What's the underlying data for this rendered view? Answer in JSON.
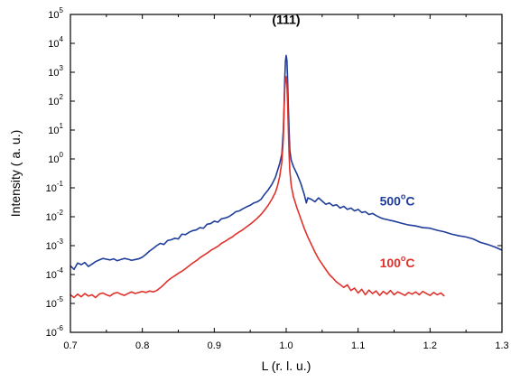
{
  "chart_data": {
    "type": "line",
    "xlabel": "L (r. l. u.)",
    "ylabel": "Intensity ( a. u.)",
    "xlim": [
      0.7,
      1.3
    ],
    "ylim": [
      1e-06,
      100000.0
    ],
    "yscale": "log",
    "grid": false,
    "x_ticks": [
      "0.7",
      "0.8",
      "0.9",
      "1.0",
      "1.1",
      "1.2",
      "1.3"
    ],
    "x_tick_values": [
      0.7,
      0.8,
      0.9,
      1.0,
      1.1,
      1.2,
      1.3
    ],
    "y_ticks": [
      {
        "base": "10",
        "exp": "-6",
        "value": 1e-06
      },
      {
        "base": "10",
        "exp": "-5",
        "value": 1e-05
      },
      {
        "base": "10",
        "exp": "-4",
        "value": 0.0001
      },
      {
        "base": "10",
        "exp": "-3",
        "value": 0.001
      },
      {
        "base": "10",
        "exp": "-2",
        "value": 0.01
      },
      {
        "base": "10",
        "exp": "-1",
        "value": 0.1
      },
      {
        "base": "10",
        "exp": "0",
        "value": 1
      },
      {
        "base": "10",
        "exp": "1",
        "value": 10
      },
      {
        "base": "10",
        "exp": "2",
        "value": 100
      },
      {
        "base": "10",
        "exp": "3",
        "value": 1000
      },
      {
        "base": "10",
        "exp": "4",
        "value": 10000
      },
      {
        "base": "10",
        "exp": "5",
        "value": 100000
      }
    ],
    "annotations": [
      {
        "text": "(111)",
        "color": "#000000",
        "x": 1.0,
        "y": 40000
      }
    ],
    "series": [
      {
        "name": "500°C",
        "label_parts": {
          "main": "500",
          "sup": "o",
          "tail": "C"
        },
        "label_pos": {
          "x": 1.13,
          "y": 0.025
        },
        "color": "#1f3d9a",
        "points": [
          [
            0.7,
            0.0002
          ],
          [
            0.705,
            0.00015
          ],
          [
            0.71,
            0.00025
          ],
          [
            0.715,
            0.00022
          ],
          [
            0.72,
            0.00026
          ],
          [
            0.725,
            0.00019
          ],
          [
            0.73,
            0.00023
          ],
          [
            0.735,
            0.00028
          ],
          [
            0.74,
            0.00032
          ],
          [
            0.745,
            0.00036
          ],
          [
            0.75,
            0.00034
          ],
          [
            0.755,
            0.00032
          ],
          [
            0.76,
            0.00035
          ],
          [
            0.765,
            0.0003
          ],
          [
            0.77,
            0.00033
          ],
          [
            0.775,
            0.00036
          ],
          [
            0.78,
            0.00034
          ],
          [
            0.785,
            0.00031
          ],
          [
            0.79,
            0.00033
          ],
          [
            0.795,
            0.00035
          ],
          [
            0.8,
            0.0004
          ],
          [
            0.805,
            0.0005
          ],
          [
            0.81,
            0.00065
          ],
          [
            0.815,
            0.0008
          ],
          [
            0.82,
            0.001
          ],
          [
            0.825,
            0.0012
          ],
          [
            0.83,
            0.0011
          ],
          [
            0.835,
            0.0015
          ],
          [
            0.84,
            0.0016
          ],
          [
            0.845,
            0.0018
          ],
          [
            0.85,
            0.0017
          ],
          [
            0.855,
            0.0025
          ],
          [
            0.86,
            0.0024
          ],
          [
            0.865,
            0.0029
          ],
          [
            0.87,
            0.0033
          ],
          [
            0.875,
            0.0035
          ],
          [
            0.88,
            0.0042
          ],
          [
            0.885,
            0.004
          ],
          [
            0.89,
            0.0055
          ],
          [
            0.895,
            0.0058
          ],
          [
            0.9,
            0.007
          ],
          [
            0.905,
            0.0065
          ],
          [
            0.91,
            0.0085
          ],
          [
            0.915,
            0.009
          ],
          [
            0.92,
            0.01
          ],
          [
            0.925,
            0.012
          ],
          [
            0.93,
            0.015
          ],
          [
            0.935,
            0.016
          ],
          [
            0.94,
            0.019
          ],
          [
            0.945,
            0.022
          ],
          [
            0.95,
            0.025
          ],
          [
            0.955,
            0.03
          ],
          [
            0.96,
            0.033
          ],
          [
            0.965,
            0.04
          ],
          [
            0.97,
            0.06
          ],
          [
            0.975,
            0.085
          ],
          [
            0.98,
            0.13
          ],
          [
            0.985,
            0.23
          ],
          [
            0.988,
            0.4
          ],
          [
            0.991,
            0.7
          ],
          [
            0.994,
            1.5
          ],
          [
            0.996,
            10
          ],
          [
            0.997,
            60
          ],
          [
            0.998,
            600
          ],
          [
            0.999,
            2500
          ],
          [
            1.0,
            3800
          ],
          [
            1.001,
            2600
          ],
          [
            1.002,
            500
          ],
          [
            1.003,
            60
          ],
          [
            1.004,
            10
          ],
          [
            1.005,
            2.0
          ],
          [
            1.007,
            0.9
          ],
          [
            1.01,
            0.55
          ],
          [
            1.015,
            0.3
          ],
          [
            1.02,
            0.15
          ],
          [
            1.025,
            0.06
          ],
          [
            1.028,
            0.03
          ],
          [
            1.03,
            0.045
          ],
          [
            1.035,
            0.04
          ],
          [
            1.04,
            0.033
          ],
          [
            1.045,
            0.045
          ],
          [
            1.05,
            0.035
          ],
          [
            1.055,
            0.027
          ],
          [
            1.06,
            0.03
          ],
          [
            1.065,
            0.024
          ],
          [
            1.07,
            0.026
          ],
          [
            1.075,
            0.02
          ],
          [
            1.08,
            0.023
          ],
          [
            1.085,
            0.018
          ],
          [
            1.09,
            0.02
          ],
          [
            1.095,
            0.016
          ],
          [
            1.1,
            0.018
          ],
          [
            1.105,
            0.014
          ],
          [
            1.11,
            0.015
          ],
          [
            1.115,
            0.012
          ],
          [
            1.12,
            0.013
          ],
          [
            1.125,
            0.011
          ],
          [
            1.13,
            0.0095
          ],
          [
            1.135,
            0.0085
          ],
          [
            1.14,
            0.008
          ],
          [
            1.15,
            0.007
          ],
          [
            1.16,
            0.006
          ],
          [
            1.17,
            0.0052
          ],
          [
            1.18,
            0.0048
          ],
          [
            1.19,
            0.0042
          ],
          [
            1.2,
            0.004
          ],
          [
            1.21,
            0.0034
          ],
          [
            1.22,
            0.003
          ],
          [
            1.23,
            0.0025
          ],
          [
            1.24,
            0.0022
          ],
          [
            1.25,
            0.002
          ],
          [
            1.26,
            0.0017
          ],
          [
            1.27,
            0.0013
          ],
          [
            1.28,
            0.0011
          ],
          [
            1.29,
            0.0009
          ],
          [
            1.3,
            0.0007
          ]
        ]
      },
      {
        "name": "100°C",
        "label_parts": {
          "main": "100",
          "sup": "o",
          "tail": "C"
        },
        "label_pos": {
          "x": 1.13,
          "y": 0.00018
        },
        "color": "#e0312b",
        "points": [
          [
            0.7,
            2e-05
          ],
          [
            0.705,
            1.6e-05
          ],
          [
            0.71,
            2.1e-05
          ],
          [
            0.715,
            1.7e-05
          ],
          [
            0.72,
            2.2e-05
          ],
          [
            0.725,
            1.8e-05
          ],
          [
            0.73,
            2e-05
          ],
          [
            0.735,
            1.6e-05
          ],
          [
            0.74,
            2.1e-05
          ],
          [
            0.745,
            2.3e-05
          ],
          [
            0.75,
            2e-05
          ],
          [
            0.755,
            1.8e-05
          ],
          [
            0.76,
            2.2e-05
          ],
          [
            0.765,
            2.4e-05
          ],
          [
            0.77,
            2.1e-05
          ],
          [
            0.775,
            1.9e-05
          ],
          [
            0.78,
            2.2e-05
          ],
          [
            0.785,
            2.5e-05
          ],
          [
            0.79,
            2.2e-05
          ],
          [
            0.795,
            2.4e-05
          ],
          [
            0.8,
            2.6e-05
          ],
          [
            0.805,
            2.4e-05
          ],
          [
            0.81,
            2.7e-05
          ],
          [
            0.815,
            2.5e-05
          ],
          [
            0.82,
            2.8e-05
          ],
          [
            0.825,
            3.5e-05
          ],
          [
            0.83,
            4.5e-05
          ],
          [
            0.835,
            6e-05
          ],
          [
            0.84,
            7.5e-05
          ],
          [
            0.845,
            9e-05
          ],
          [
            0.85,
            0.00011
          ],
          [
            0.855,
            0.00013
          ],
          [
            0.86,
            0.00016
          ],
          [
            0.865,
            0.0002
          ],
          [
            0.87,
            0.00025
          ],
          [
            0.875,
            0.0003
          ],
          [
            0.88,
            0.00038
          ],
          [
            0.885,
            0.00046
          ],
          [
            0.89,
            0.00055
          ],
          [
            0.895,
            0.00068
          ],
          [
            0.9,
            0.0008
          ],
          [
            0.905,
            0.00095
          ],
          [
            0.91,
            0.0012
          ],
          [
            0.915,
            0.0014
          ],
          [
            0.92,
            0.0017
          ],
          [
            0.925,
            0.002
          ],
          [
            0.93,
            0.0025
          ],
          [
            0.935,
            0.003
          ],
          [
            0.94,
            0.0036
          ],
          [
            0.945,
            0.0045
          ],
          [
            0.95,
            0.0055
          ],
          [
            0.955,
            0.007
          ],
          [
            0.96,
            0.009
          ],
          [
            0.965,
            0.012
          ],
          [
            0.97,
            0.017
          ],
          [
            0.975,
            0.025
          ],
          [
            0.98,
            0.04
          ],
          [
            0.985,
            0.07
          ],
          [
            0.988,
            0.12
          ],
          [
            0.991,
            0.25
          ],
          [
            0.994,
            0.8
          ],
          [
            0.996,
            5
          ],
          [
            0.997,
            40
          ],
          [
            0.998,
            250
          ],
          [
            0.999,
            550
          ],
          [
            1.0,
            700
          ],
          [
            1.001,
            400
          ],
          [
            1.002,
            80
          ],
          [
            1.003,
            10
          ],
          [
            1.004,
            1.5
          ],
          [
            1.005,
            0.4
          ],
          [
            1.007,
            0.12
          ],
          [
            1.01,
            0.05
          ],
          [
            1.015,
            0.02
          ],
          [
            1.02,
            0.009
          ],
          [
            1.025,
            0.004
          ],
          [
            1.03,
            0.002
          ],
          [
            1.035,
            0.0011
          ],
          [
            1.04,
            0.0006
          ],
          [
            1.045,
            0.00035
          ],
          [
            1.05,
            0.00023
          ],
          [
            1.055,
            0.00015
          ],
          [
            1.06,
            0.0001
          ],
          [
            1.065,
            7.5e-05
          ],
          [
            1.07,
            5.5e-05
          ],
          [
            1.075,
            4.5e-05
          ],
          [
            1.08,
            3.6e-05
          ],
          [
            1.085,
            4.4e-05
          ],
          [
            1.09,
            2.8e-05
          ],
          [
            1.095,
            3.4e-05
          ],
          [
            1.1,
            2.3e-05
          ],
          [
            1.105,
            3.1e-05
          ],
          [
            1.11,
            2e-05
          ],
          [
            1.115,
            2.9e-05
          ],
          [
            1.12,
            2.2e-05
          ],
          [
            1.125,
            2.7e-05
          ],
          [
            1.13,
            1.9e-05
          ],
          [
            1.135,
            2.6e-05
          ],
          [
            1.14,
            2.1e-05
          ],
          [
            1.145,
            2.8e-05
          ],
          [
            1.15,
            2e-05
          ],
          [
            1.155,
            2.5e-05
          ],
          [
            1.16,
            2.2e-05
          ],
          [
            1.165,
            1.9e-05
          ],
          [
            1.17,
            2.4e-05
          ],
          [
            1.175,
            2.1e-05
          ],
          [
            1.18,
            2.5e-05
          ],
          [
            1.185,
            2e-05
          ],
          [
            1.19,
            2.6e-05
          ],
          [
            1.195,
            2.2e-05
          ],
          [
            1.2,
            1.9e-05
          ],
          [
            1.205,
            2.4e-05
          ],
          [
            1.21,
            2e-05
          ],
          [
            1.215,
            2.3e-05
          ],
          [
            1.22,
            1.8e-05
          ]
        ]
      }
    ]
  }
}
